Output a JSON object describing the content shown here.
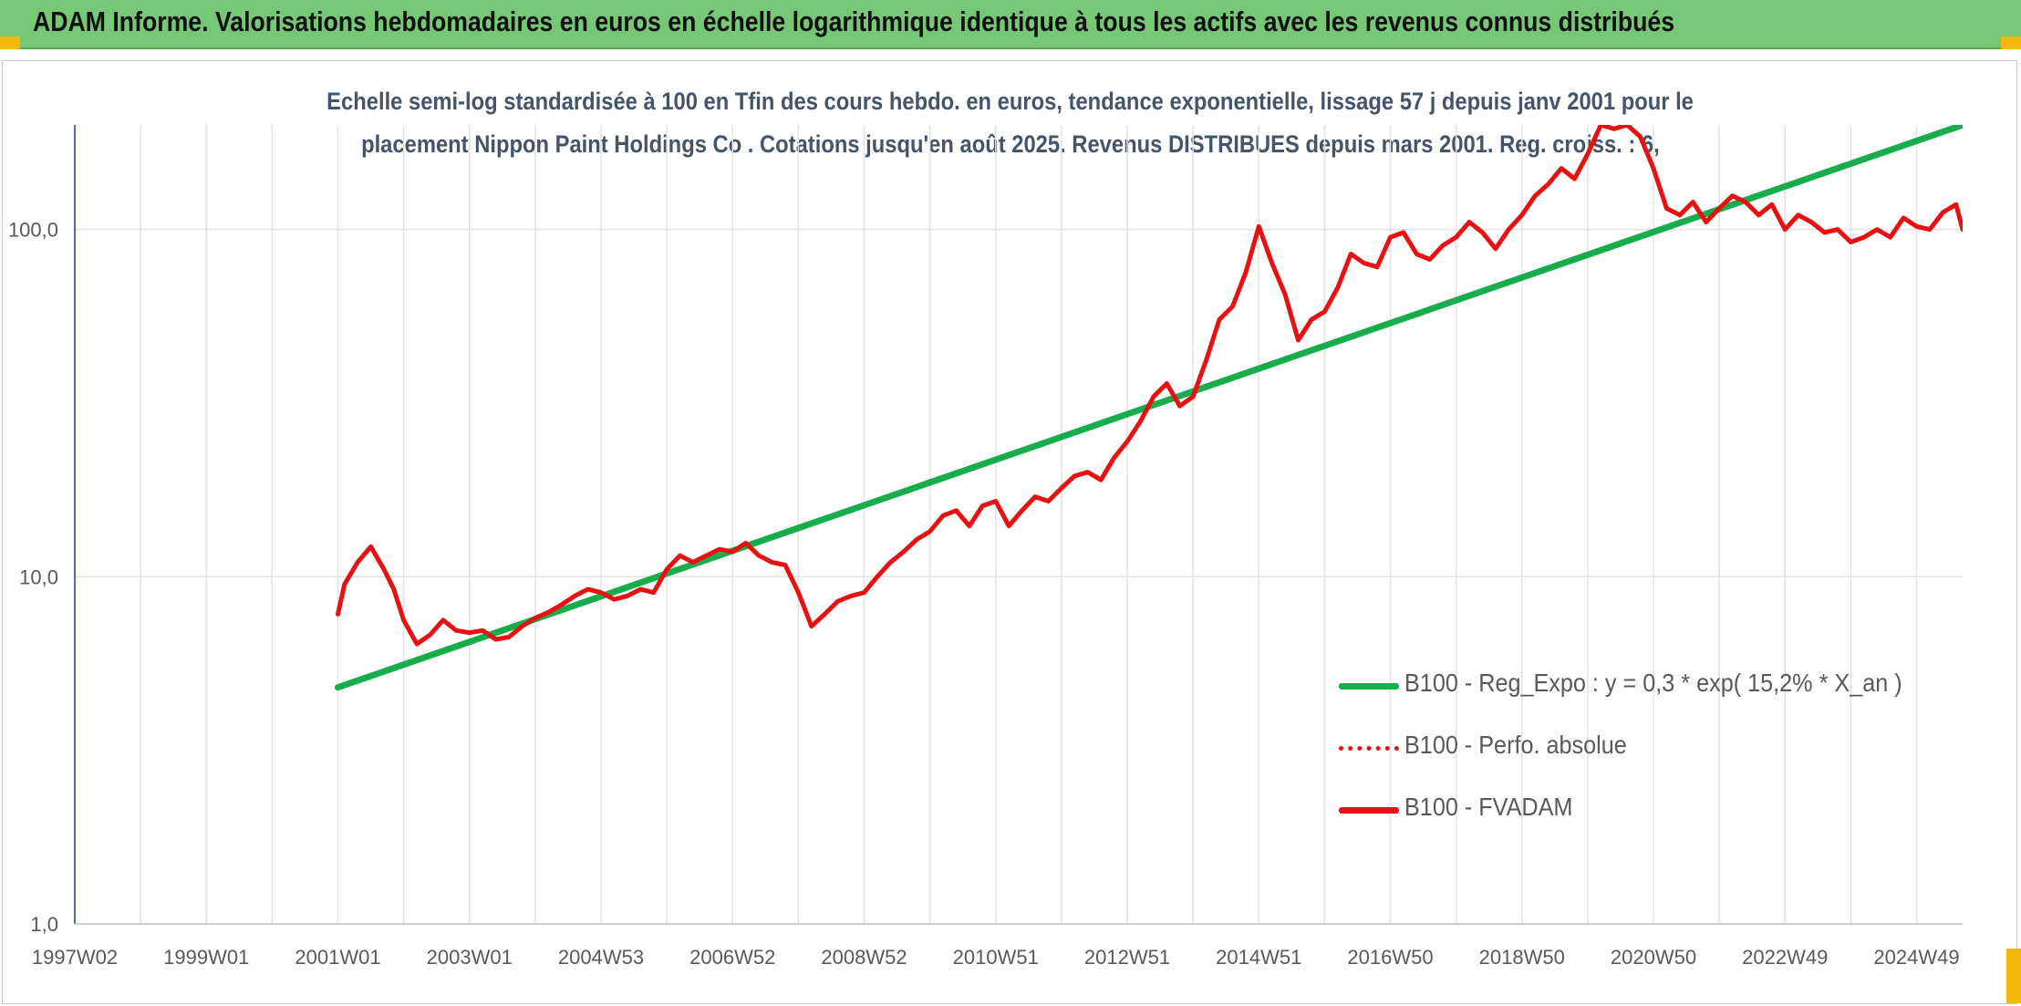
{
  "banner": {
    "title": "ADAM Informe. Valorisations hebdomadaires en euros en échelle logarithmique identique à tous les actifs avec les revenus connus distribués",
    "color": "#76c776"
  },
  "accent_color": "#f5b90e",
  "chart_data": {
    "type": "line",
    "title_line1": "Echelle semi-log standardisée à 100 en Tfin des cours hebdo. en euros, tendance exponentielle, lissage 57 j depuis janv 2001 pour le",
    "title_line2": "placement Nippon Paint Holdings Co . Cotations jusqu'en août 2025. Revenus DISTRIBUES depuis mars 2001. Reg. croiss. : 6,",
    "y_scale": "log",
    "ylim": [
      1,
      200
    ],
    "y_ticks": [
      1,
      10,
      100
    ],
    "y_tick_labels": [
      "1,0",
      "10,0",
      "100,0"
    ],
    "xlim": [
      1997.0,
      2025.7
    ],
    "x_tick_positions": [
      1997.0,
      1999.0,
      2001.0,
      2003.0,
      2005.0,
      2007.0,
      2009.0,
      2011.0,
      2013.0,
      2015.0,
      2017.0,
      2019.0,
      2021.0,
      2023.0,
      2025.0
    ],
    "x_tick_labels": [
      "1997W02",
      "1999W01",
      "2001W01",
      "2003W01",
      "2004W53",
      "2006W52",
      "2008W52",
      "2010W51",
      "2012W51",
      "2014W51",
      "2016W50",
      "2018W50",
      "2020W50",
      "2022W49",
      "2024W49"
    ],
    "grid": true,
    "legend_position": "bottom-right",
    "series": [
      {
        "name": "B100 - Reg_Expo : y = 0,3 * exp( 15,2% *  X_an )",
        "color": "#18ad4c",
        "style": "solid",
        "x": [
          2001.0,
          2025.7
        ],
        "y": [
          4.8,
          200
        ]
      },
      {
        "name": "B100 - Perfo. absolue",
        "color": "#e81010",
        "style": "dotted",
        "x": [],
        "y": []
      },
      {
        "name": "B100 - FVADAM",
        "color": "#e81010",
        "style": "solid",
        "x": [
          2001.0,
          2001.1,
          2001.3,
          2001.5,
          2001.7,
          2001.85,
          2002.0,
          2002.2,
          2002.4,
          2002.6,
          2002.8,
          2003.0,
          2003.2,
          2003.4,
          2003.6,
          2003.8,
          2004.0,
          2004.2,
          2004.4,
          2004.6,
          2004.8,
          2005.0,
          2005.2,
          2005.4,
          2005.6,
          2005.8,
          2006.0,
          2006.2,
          2006.4,
          2006.6,
          2006.8,
          2007.0,
          2007.2,
          2007.4,
          2007.6,
          2007.8,
          2008.0,
          2008.2,
          2008.4,
          2008.6,
          2008.8,
          2009.0,
          2009.2,
          2009.4,
          2009.6,
          2009.8,
          2010.0,
          2010.2,
          2010.4,
          2010.6,
          2010.8,
          2011.0,
          2011.2,
          2011.4,
          2011.6,
          2011.8,
          2012.0,
          2012.2,
          2012.4,
          2012.6,
          2012.8,
          2013.0,
          2013.2,
          2013.4,
          2013.6,
          2013.8,
          2014.0,
          2014.2,
          2014.4,
          2014.6,
          2014.8,
          2015.0,
          2015.2,
          2015.4,
          2015.6,
          2015.8,
          2016.0,
          2016.2,
          2016.4,
          2016.6,
          2016.8,
          2017.0,
          2017.2,
          2017.4,
          2017.6,
          2017.8,
          2018.0,
          2018.2,
          2018.4,
          2018.6,
          2018.8,
          2019.0,
          2019.2,
          2019.4,
          2019.6,
          2019.8,
          2020.0,
          2020.2,
          2020.4,
          2020.6,
          2020.8,
          2021.0,
          2021.2,
          2021.4,
          2021.6,
          2021.8,
          2022.0,
          2022.2,
          2022.4,
          2022.6,
          2022.8,
          2023.0,
          2023.2,
          2023.4,
          2023.6,
          2023.8,
          2024.0,
          2024.2,
          2024.4,
          2024.6,
          2024.8,
          2025.0,
          2025.2,
          2025.4,
          2025.6,
          2025.7
        ],
        "y": [
          7.8,
          9.5,
          11.0,
          12.2,
          10.5,
          9.2,
          7.5,
          6.4,
          6.8,
          7.5,
          7.0,
          6.9,
          7.0,
          6.6,
          6.7,
          7.2,
          7.6,
          7.9,
          8.3,
          8.8,
          9.2,
          9.0,
          8.6,
          8.8,
          9.2,
          9.0,
          10.5,
          11.5,
          11.0,
          11.5,
          12.0,
          11.8,
          12.5,
          11.5,
          11.0,
          10.8,
          9.0,
          7.2,
          7.8,
          8.5,
          8.8,
          9.0,
          10.0,
          11.0,
          11.8,
          12.8,
          13.5,
          15.0,
          15.5,
          14.0,
          16.0,
          16.5,
          14.0,
          15.5,
          17.0,
          16.5,
          18.0,
          19.5,
          20.0,
          19.0,
          22.0,
          24.5,
          28.0,
          33.0,
          36.0,
          31.0,
          33.0,
          42.0,
          55.0,
          60.0,
          75.0,
          102.0,
          80.0,
          65.0,
          48.0,
          55.0,
          58.0,
          68.0,
          85.0,
          80.0,
          78.0,
          95.0,
          98.0,
          85.0,
          82.0,
          90.0,
          95.0,
          105.0,
          98.0,
          88.0,
          100.0,
          110.0,
          125.0,
          135.0,
          150.0,
          140.0,
          165.0,
          200.0,
          195.0,
          200.0,
          185.0,
          150.0,
          115.0,
          110.0,
          120.0,
          105.0,
          115.0,
          125.0,
          120.0,
          110.0,
          118.0,
          100.0,
          110.0,
          105.0,
          98.0,
          100.0,
          92.0,
          95.0,
          100.0,
          95.0,
          108.0,
          102.0,
          100.0,
          112.0,
          118.0,
          100.0
        ]
      }
    ]
  }
}
